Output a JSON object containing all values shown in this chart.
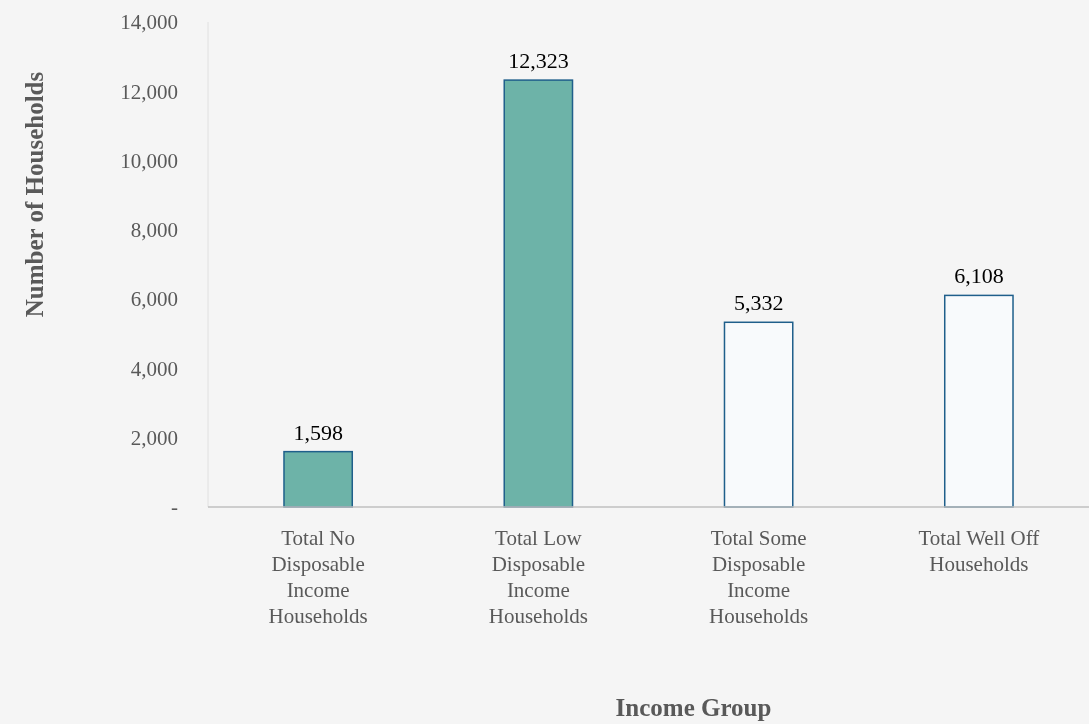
{
  "chart_data": {
    "type": "bar",
    "xlabel": "Income Group",
    "ylabel": "Number of Households",
    "categories": [
      "Total No Disposable Income Households",
      "Total Low Disposable Income Households",
      "Total Some Disposable Income Households",
      "Total Well Off Households"
    ],
    "values": [
      1598,
      12323,
      5332,
      6108
    ],
    "colors": [
      "#6db3a8",
      "#6db3a8",
      "#f8fafc",
      "#f8fafc"
    ],
    "ylim": [
      0,
      14000
    ],
    "yticks": [
      {
        "value": 0,
        "label": "-"
      },
      {
        "value": 2000,
        "label": "2,000"
      },
      {
        "value": 4000,
        "label": "4,000"
      },
      {
        "value": 6000,
        "label": "6,000"
      },
      {
        "value": 8000,
        "label": "8,000"
      },
      {
        "value": 10000,
        "label": "10,000"
      },
      {
        "value": 12000,
        "label": "12,000"
      },
      {
        "value": 14000,
        "label": "14,000"
      }
    ],
    "value_labels": [
      "1,598",
      "12,323",
      "5,332",
      "6,108"
    ],
    "grid": false
  }
}
